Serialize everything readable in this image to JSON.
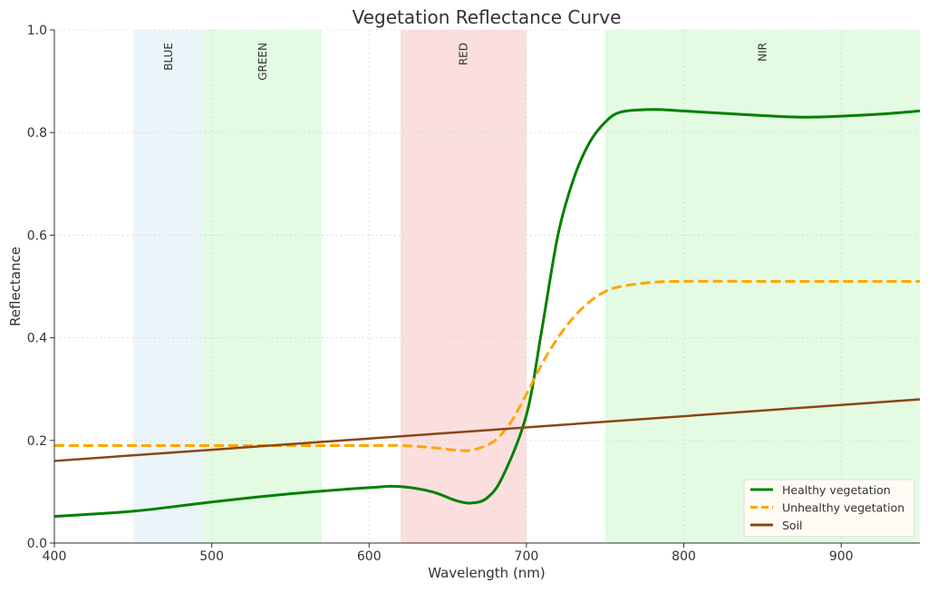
{
  "chart_data": {
    "type": "line",
    "title": "Vegetation Reflectance Curve",
    "xlabel": "Wavelength (nm)",
    "ylabel": "Reflectance",
    "xlim": [
      400,
      950
    ],
    "ylim": [
      0,
      1.0
    ],
    "xticks": [
      400,
      500,
      600,
      700,
      800,
      900
    ],
    "yticks": [
      0.0,
      0.2,
      0.4,
      0.6,
      0.8,
      1.0
    ],
    "grid": true,
    "legend_placement": "bottom-right",
    "bands": [
      {
        "label": "BLUE",
        "range": [
          450,
          495
        ],
        "color": "#add8e6"
      },
      {
        "label": "GREEN",
        "range": [
          495,
          570
        ],
        "color": "#90ee90"
      },
      {
        "label": "RED",
        "range": [
          620,
          700
        ],
        "color": "#f08080"
      },
      {
        "label": "NIR",
        "range": [
          750,
          950
        ],
        "color": "#90ee90"
      }
    ],
    "series": [
      {
        "name": "Healthy vegetation",
        "color": "#008000",
        "style": "solid",
        "x": [
          400,
          450,
          500,
          550,
          600,
          620,
          640,
          655,
          665,
          675,
          685,
          700,
          710,
          720,
          730,
          740,
          750,
          760,
          780,
          800,
          850,
          880,
          920,
          950
        ],
        "y": [
          0.052,
          0.062,
          0.08,
          0.096,
          0.108,
          0.11,
          0.1,
          0.083,
          0.078,
          0.088,
          0.13,
          0.25,
          0.42,
          0.6,
          0.71,
          0.78,
          0.82,
          0.84,
          0.845,
          0.842,
          0.833,
          0.83,
          0.835,
          0.842
        ]
      },
      {
        "name": "Unhealthy vegetation",
        "color": "#ffa500",
        "style": "dashed",
        "x": [
          400,
          450,
          500,
          550,
          600,
          620,
          640,
          660,
          670,
          680,
          690,
          700,
          710,
          720,
          730,
          740,
          750,
          760,
          780,
          800,
          850,
          900,
          950
        ],
        "y": [
          0.19,
          0.19,
          0.19,
          0.19,
          0.19,
          0.19,
          0.186,
          0.18,
          0.185,
          0.2,
          0.235,
          0.29,
          0.35,
          0.4,
          0.44,
          0.47,
          0.49,
          0.5,
          0.508,
          0.51,
          0.51,
          0.51,
          0.51
        ]
      },
      {
        "name": "Soil",
        "color": "#8b4513",
        "style": "solid",
        "x": [
          400,
          950
        ],
        "y": [
          0.16,
          0.28
        ]
      }
    ]
  }
}
